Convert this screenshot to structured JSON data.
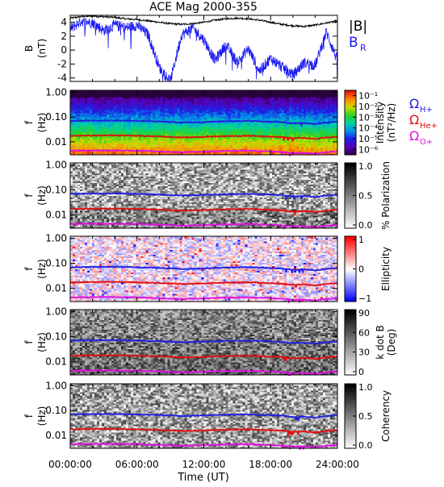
{
  "title": "ACE Mag 2000-355",
  "colors": {
    "B": "#000000",
    "BR": "#1a1aee",
    "H": "#1f1fe0",
    "He": "#e01010",
    "O": "#e010e0",
    "axis": "#000000"
  },
  "legend_top": {
    "B": "|B|",
    "BR_main": "B",
    "BR_sub": "R"
  },
  "legend_freq": {
    "omega": "Ω",
    "H": "H+",
    "He": "He+",
    "O": "O+"
  },
  "xaxis": {
    "label": "Time (UT)",
    "tick_labels": [
      "00:00:00",
      "06:00:00",
      "12:00:00",
      "18:00:00",
      "24:00:00"
    ],
    "tick_values": [
      0,
      6,
      12,
      18,
      24
    ],
    "range": [
      0,
      24
    ]
  },
  "chart_data": [
    {
      "type": "line",
      "ylabel_line1": "B",
      "ylabel_line2": "(nT)",
      "yticks": [
        "4",
        "2",
        "0",
        "-2",
        "-4"
      ],
      "ylim": [
        -4.5,
        5
      ],
      "x": [
        0,
        1,
        2,
        3,
        4,
        5,
        6,
        7,
        8,
        9,
        10,
        11,
        12,
        13,
        14,
        15,
        16,
        17,
        18,
        19,
        20,
        21,
        22,
        23,
        24
      ],
      "series": [
        {
          "name": "|B|",
          "values": [
            4.6,
            4.8,
            4.9,
            4.8,
            4.7,
            4.5,
            4.4,
            4.2,
            4.0,
            3.8,
            3.7,
            3.8,
            4.0,
            4.3,
            4.5,
            4.6,
            4.5,
            4.3,
            4.0,
            3.7,
            3.5,
            3.4,
            3.6,
            3.9,
            4.2
          ]
        },
        {
          "name": "B_R",
          "values": [
            3.0,
            4.2,
            4.0,
            2.8,
            3.6,
            3.2,
            3.6,
            2.2,
            -2.5,
            -4.4,
            2.2,
            3.2,
            1.5,
            -1.5,
            0.8,
            -1.8,
            0.2,
            -3.0,
            -1.2,
            -2.4,
            -3.6,
            -1.8,
            -2.2,
            2.6,
            -1.5
          ]
        }
      ]
    },
    {
      "type": "heatmap",
      "quantity": "Intensity",
      "ylabel_line1": "f",
      "ylabel_line2": "(Hz)",
      "yticks": [
        "1.00",
        "0.10",
        "0.01"
      ],
      "ylim": [
        0.003,
        1.2
      ],
      "cbar_label_line1": "Intensity",
      "cbar_label_line2": "(nT²/Hz)",
      "cbar_ticks": [
        "10⁻¹",
        "10⁻²",
        "10⁻³",
        "10⁻⁴",
        "10⁻⁵",
        "10⁻⁶"
      ],
      "cbar_range": [
        -6.5,
        -0.5
      ]
    },
    {
      "type": "heatmap",
      "quantity": "% Polarization",
      "ylabel_line1": "f",
      "ylabel_line2": "(Hz)",
      "yticks": [
        "1.00",
        "0.10",
        "0.01"
      ],
      "ylim": [
        0.003,
        1.2
      ],
      "cbar_label": "% Polarization",
      "cbar_ticks": [
        "1.0",
        "0.5",
        "0.0"
      ],
      "cbar_range": [
        0,
        1
      ]
    },
    {
      "type": "heatmap",
      "quantity": "Ellipticity",
      "ylabel_line1": "f",
      "ylabel_line2": "(Hz)",
      "yticks": [
        "1.00",
        "0.10",
        "0.01"
      ],
      "ylim": [
        0.003,
        1.2
      ],
      "cbar_label": "Ellipticity",
      "cbar_ticks": [
        "1",
        "0",
        "−1"
      ],
      "cbar_range": [
        -1,
        1
      ]
    },
    {
      "type": "heatmap",
      "quantity": "k dot B",
      "ylabel_line1": "f",
      "ylabel_line2": "(Hz)",
      "yticks": [
        "1.00",
        "0.10",
        "0.01"
      ],
      "ylim": [
        0.003,
        1.2
      ],
      "cbar_label_line1": "k dot B",
      "cbar_label_line2": "(Deg)",
      "cbar_ticks": [
        "90",
        "60",
        "30",
        "0"
      ],
      "cbar_range": [
        0,
        90
      ]
    },
    {
      "type": "heatmap",
      "quantity": "Coherency",
      "ylabel_line1": "f",
      "ylabel_line2": "(Hz)",
      "yticks": [
        "1.00",
        "0.10",
        "0.01"
      ],
      "ylim": [
        0.003,
        1.2
      ],
      "cbar_label": "Coherency",
      "cbar_ticks": [
        "1.0",
        "0.5",
        "0.0"
      ],
      "cbar_range": [
        0,
        1
      ]
    }
  ],
  "gyro_freqs": {
    "x": [
      0,
      2,
      4,
      6,
      8,
      10,
      12,
      14,
      16,
      18,
      19,
      20,
      21,
      22,
      23,
      24
    ],
    "H+": [
      0.07,
      0.072,
      0.073,
      0.07,
      0.066,
      0.06,
      0.063,
      0.068,
      0.07,
      0.065,
      0.062,
      0.055,
      0.058,
      0.052,
      0.06,
      0.065
    ],
    "He+": [
      0.0175,
      0.018,
      0.0182,
      0.0175,
      0.0165,
      0.015,
      0.0158,
      0.017,
      0.0175,
      0.0162,
      0.0155,
      0.0138,
      0.0145,
      0.013,
      0.015,
      0.0162
    ],
    "O+": [
      0.0044,
      0.0045,
      0.0045,
      0.0044,
      0.0041,
      0.0038,
      0.004,
      0.0043,
      0.0044,
      0.0041,
      0.0039,
      0.0035,
      0.0036,
      0.0033,
      0.0038,
      0.0041
    ]
  }
}
